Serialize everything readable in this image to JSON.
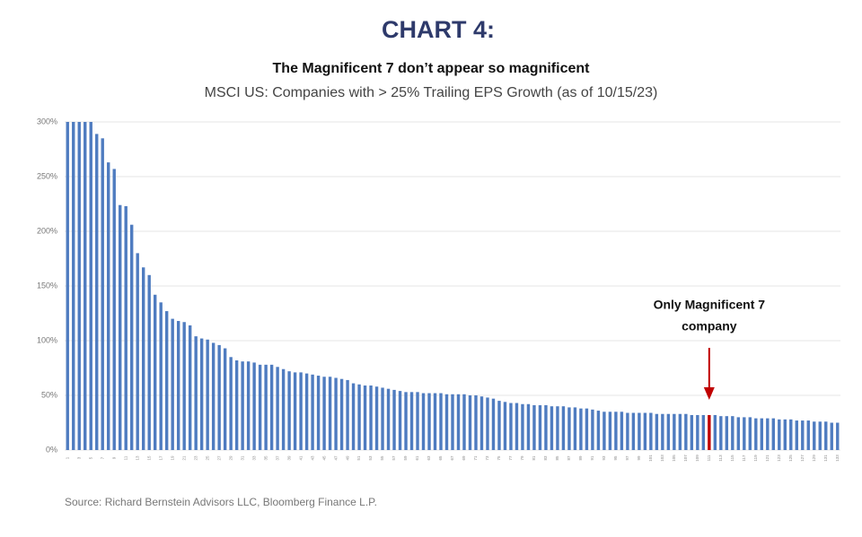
{
  "chart_data": {
    "type": "bar",
    "title": "CHART 4:",
    "subtitle": "The Magnificent 7 don’t appear so magnificent",
    "subtitle2": "MSCI US: Companies with > 25% Trailing EPS Growth (as of 10/15/23)",
    "source": "Source: Richard Bernstein Advisors LLC, Bloomberg Finance L.P.",
    "color": "#4f7cc0",
    "grid": true,
    "ylim": [
      0,
      300
    ],
    "yticks": [
      {
        "value": 0,
        "label": "0%"
      },
      {
        "value": 50,
        "label": "50%"
      },
      {
        "value": 100,
        "label": "100%"
      },
      {
        "value": 150,
        "label": "150%"
      },
      {
        "value": 200,
        "label": "200%"
      },
      {
        "value": 250,
        "label": "250%"
      },
      {
        "value": 300,
        "label": "300%"
      }
    ],
    "annotation": {
      "lines": [
        "Only Magnificent 7",
        "company"
      ],
      "category": "111",
      "color": "#c00000"
    },
    "categories": [
      "1",
      null,
      "3",
      null,
      "5",
      null,
      "7",
      null,
      "9",
      null,
      "11",
      null,
      "13",
      null,
      "15",
      null,
      "17",
      null,
      "19",
      null,
      "21",
      null,
      "23",
      null,
      "25",
      null,
      "27",
      null,
      "29",
      null,
      "31",
      null,
      "33",
      null,
      "35",
      null,
      "37",
      null,
      "39",
      null,
      "41",
      null,
      "43",
      null,
      "45",
      null,
      "47",
      null,
      "49",
      null,
      "51",
      null,
      "53",
      null,
      "55",
      null,
      "57",
      null,
      "59",
      null,
      "61",
      null,
      "63",
      null,
      "65",
      null,
      "67",
      null,
      "69",
      null,
      "71",
      null,
      "73",
      null,
      "75",
      null,
      "77",
      null,
      "79",
      null,
      "81",
      null,
      "83",
      null,
      "85",
      null,
      "87",
      null,
      "89",
      null,
      "91",
      null,
      "93",
      null,
      "95",
      null,
      "97",
      null,
      "99",
      null,
      "101",
      null,
      "103",
      null,
      "105",
      null,
      "107",
      null,
      "109",
      null,
      "111",
      null,
      "113",
      null,
      "115",
      null,
      "117",
      null,
      "119",
      null,
      "121",
      null,
      "123",
      null,
      "125",
      null,
      "127",
      null,
      "129",
      null,
      "131",
      null,
      "133"
    ],
    "values": [
      300,
      300,
      300,
      300,
      300,
      289,
      285,
      263,
      257,
      224,
      223,
      206,
      180,
      167,
      160,
      142,
      135,
      127,
      120,
      118,
      117,
      114,
      104,
      102,
      101,
      98,
      96,
      93,
      85,
      82,
      81,
      81,
      80,
      78,
      78,
      78,
      76,
      74,
      72,
      71,
      71,
      70,
      69,
      68,
      67,
      67,
      66,
      65,
      64,
      61,
      60,
      59,
      59,
      58,
      57,
      56,
      55,
      54,
      53,
      53,
      53,
      52,
      52,
      52,
      52,
      51,
      51,
      51,
      51,
      50,
      50,
      49,
      48,
      47,
      45,
      44,
      43,
      43,
      42,
      42,
      41,
      41,
      41,
      40,
      40,
      40,
      39,
      39,
      38,
      38,
      37,
      36,
      35,
      35,
      35,
      35,
      34,
      34,
      34,
      34,
      34,
      33,
      33,
      33,
      33,
      33,
      33,
      32,
      32,
      32,
      32,
      32,
      31,
      31,
      31,
      30,
      30,
      30,
      29,
      29,
      29,
      29,
      28,
      28,
      28,
      27,
      27,
      27,
      26,
      26,
      26,
      25,
      25
    ]
  }
}
